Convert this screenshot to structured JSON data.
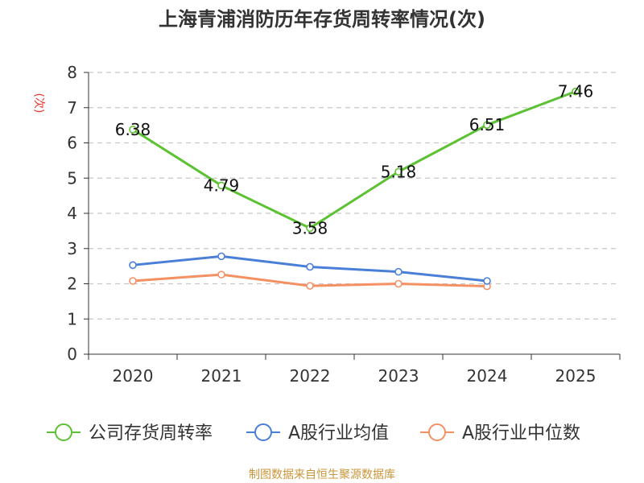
{
  "chart_data": {
    "type": "line",
    "title": "上海青浦消防历年存货周转率情况(次)",
    "ylabel": "(次)",
    "xlabel": "",
    "categories": [
      "2020",
      "2021",
      "2022",
      "2023",
      "2024",
      "2025"
    ],
    "ylim": [
      0,
      8
    ],
    "yticks": [
      0,
      1,
      2,
      3,
      4,
      5,
      6,
      7,
      8
    ],
    "grid": true,
    "legend_position": "bottom",
    "series": [
      {
        "name": "公司存货周转率",
        "color": "#5cc233",
        "values": [
          6.38,
          4.79,
          3.58,
          5.18,
          6.51,
          7.46
        ],
        "labels": [
          "6.38",
          "4.79",
          "3.58",
          "5.18",
          "6.51",
          "7.46"
        ]
      },
      {
        "name": "A股行业均值",
        "color": "#4a7fd8",
        "values": [
          2.53,
          2.78,
          2.48,
          2.34,
          2.08,
          null
        ]
      },
      {
        "name": "A股行业中位数",
        "color": "#f49062",
        "values": [
          2.08,
          2.26,
          1.94,
          2.0,
          1.93,
          null
        ]
      }
    ],
    "source": "制图数据来自恒生聚源数据库"
  }
}
